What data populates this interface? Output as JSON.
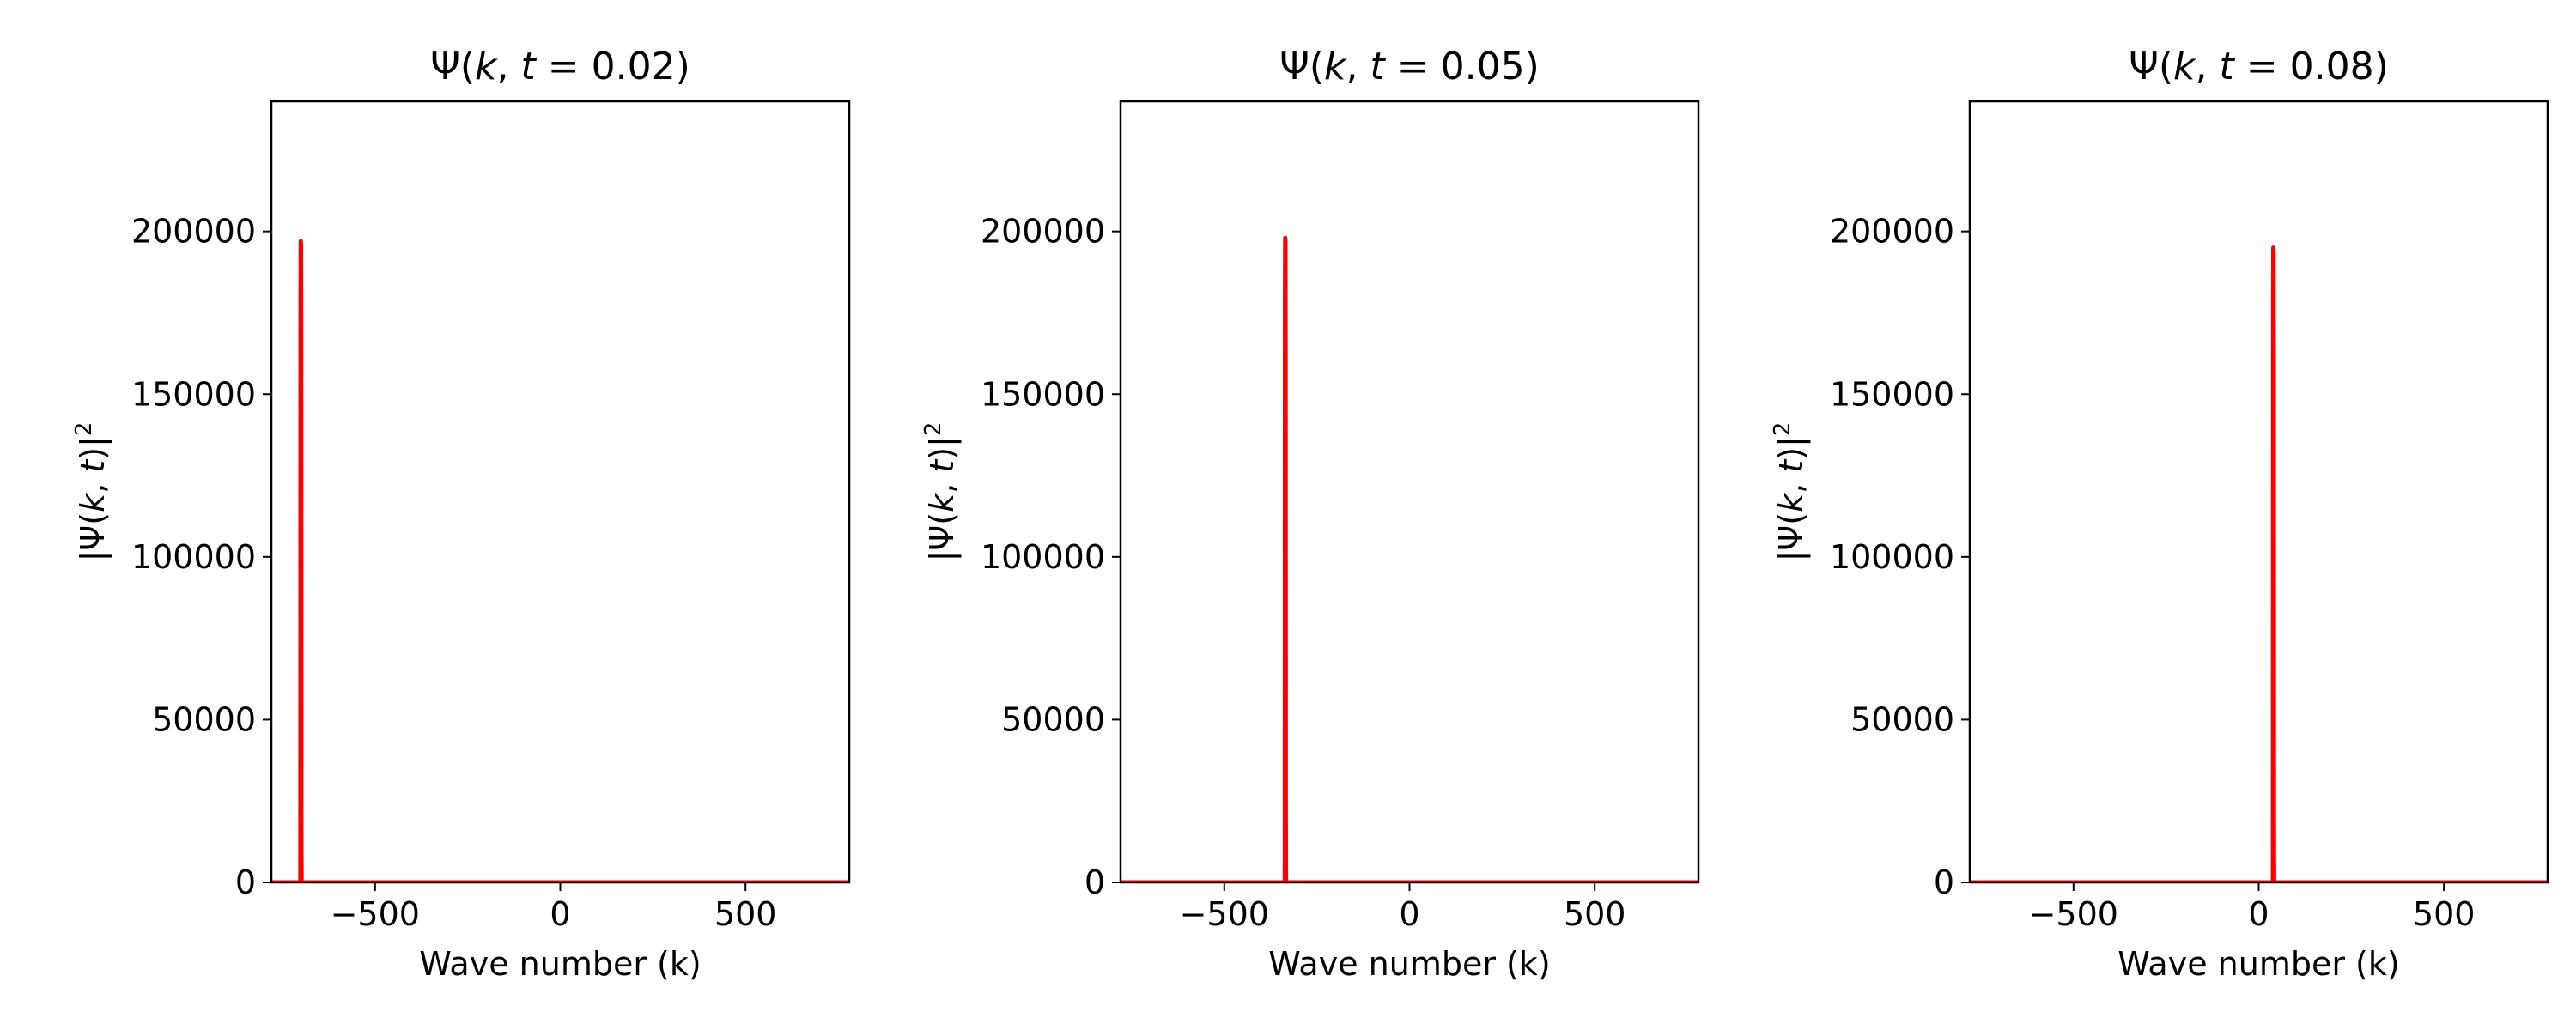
{
  "chart_data": [
    {
      "type": "line",
      "title": "Ψ(k, t = 0.02)",
      "title_parts": {
        "pre": "Ψ(",
        "k": "k",
        "mid": ", ",
        "t": "t",
        "post": " = 0.02)"
      },
      "xlabel": "Wave number (k)",
      "ylabel_parts": {
        "pre": "|Ψ(",
        "k": "k",
        "mid": ", ",
        "t": "t",
        "post": ")|",
        "sup": "2"
      },
      "xlim": [
        -780,
        780
      ],
      "ylim": [
        0,
        240000
      ],
      "xticks": [
        -500,
        0,
        500
      ],
      "xtick_labels": [
        "−500",
        "0",
        "500"
      ],
      "yticks": [
        0,
        50000,
        100000,
        150000,
        200000
      ],
      "ytick_labels": [
        "0",
        "50000",
        "100000",
        "150000",
        "200000"
      ],
      "series": [
        {
          "color": "#ff0000",
          "x": [
            -780,
            -701.5,
            -701,
            -700.5,
            -700,
            -699.5,
            -699,
            -698.5,
            780
          ],
          "y": [
            0,
            0,
            180000,
            197000,
            196000,
            160000,
            20000,
            0,
            0
          ]
        }
      ],
      "grid": false,
      "legend": "none"
    },
    {
      "type": "line",
      "title": "Ψ(k, t = 0.05)",
      "title_parts": {
        "pre": "Ψ(",
        "k": "k",
        "mid": ", ",
        "t": "t",
        "post": " = 0.05)"
      },
      "xlabel": "Wave number (k)",
      "ylabel_parts": {
        "pre": "|Ψ(",
        "k": "k",
        "mid": ", ",
        "t": "t",
        "post": ")|",
        "sup": "2"
      },
      "xlim": [
        -780,
        780
      ],
      "ylim": [
        0,
        240000
      ],
      "xticks": [
        -500,
        0,
        500
      ],
      "xtick_labels": [
        "−500",
        "0",
        "500"
      ],
      "yticks": [
        0,
        50000,
        100000,
        150000,
        200000
      ],
      "ytick_labels": [
        "0",
        "50000",
        "100000",
        "150000",
        "200000"
      ],
      "series": [
        {
          "color": "#ff0000",
          "x": [
            -780,
            -336.5,
            -336,
            -335.5,
            -335,
            -334.5,
            -334,
            -333.5,
            780
          ],
          "y": [
            0,
            0,
            180000,
            198000,
            197000,
            160000,
            20000,
            0,
            0
          ]
        }
      ],
      "grid": false,
      "legend": "none"
    },
    {
      "type": "line",
      "title": "Ψ(k, t = 0.08)",
      "title_parts": {
        "pre": "Ψ(",
        "k": "k",
        "mid": ", ",
        "t": "t",
        "post": " = 0.08)"
      },
      "xlabel": "Wave number (k)",
      "ylabel_parts": {
        "pre": "|Ψ(",
        "k": "k",
        "mid": ", ",
        "t": "t",
        "post": ")|",
        "sup": "2"
      },
      "xlim": [
        -780,
        780
      ],
      "ylim": [
        0,
        240000
      ],
      "xticks": [
        -500,
        0,
        500
      ],
      "xtick_labels": [
        "−500",
        "0",
        "500"
      ],
      "yticks": [
        0,
        50000,
        100000,
        150000,
        200000
      ],
      "ytick_labels": [
        "0",
        "50000",
        "100000",
        "150000",
        "200000"
      ],
      "series": [
        {
          "color": "#ff0000",
          "x": [
            -780,
            38.5,
            39,
            39.5,
            40,
            40.5,
            41,
            41.5,
            780
          ],
          "y": [
            0,
            0,
            178000,
            195000,
            194000,
            158000,
            20000,
            0,
            0
          ]
        }
      ],
      "grid": false,
      "legend": "none"
    }
  ]
}
